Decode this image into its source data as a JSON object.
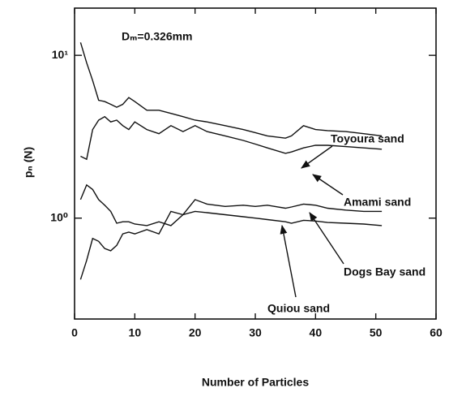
{
  "chart_data": {
    "type": "line",
    "x_label": "Number of Particles",
    "y_label": "pₙ (N)",
    "annotation": "Dₘ=0.326mm",
    "x": [
      1,
      2,
      3,
      4,
      5,
      6,
      7,
      8,
      9,
      10,
      12,
      14,
      16,
      18,
      20,
      22,
      25,
      28,
      30,
      32,
      35,
      36,
      38,
      40,
      42,
      45,
      48,
      51
    ],
    "series": [
      {
        "name": "Toyoura sand",
        "color": "#111111",
        "values": [
          12,
          9,
          7,
          5.3,
          5.2,
          5.0,
          4.8,
          5.0,
          5.5,
          5.2,
          4.6,
          4.6,
          4.4,
          4.2,
          4.0,
          3.9,
          3.7,
          3.5,
          3.35,
          3.2,
          3.1,
          3.2,
          3.7,
          3.5,
          3.45,
          3.4,
          3.3,
          3.2
        ]
      },
      {
        "name": "Amami sand",
        "color": "#111111",
        "values": [
          2.4,
          2.3,
          3.5,
          4.0,
          4.2,
          3.9,
          4.0,
          3.7,
          3.5,
          3.9,
          3.5,
          3.3,
          3.7,
          3.4,
          3.7,
          3.4,
          3.2,
          3.0,
          2.85,
          2.7,
          2.5,
          2.55,
          2.7,
          2.8,
          2.8,
          2.75,
          2.7,
          2.65
        ]
      },
      {
        "name": "Dogs Bay sand",
        "color": "#111111",
        "values": [
          1.3,
          1.6,
          1.5,
          1.3,
          1.2,
          1.1,
          0.93,
          0.95,
          0.95,
          0.92,
          0.9,
          0.95,
          0.9,
          1.05,
          1.1,
          1.08,
          1.05,
          1.02,
          1.0,
          0.98,
          0.95,
          0.93,
          0.97,
          0.96,
          0.94,
          0.93,
          0.92,
          0.9
        ]
      },
      {
        "name": "Quiou sand",
        "color": "#111111",
        "values": [
          0.42,
          0.55,
          0.75,
          0.72,
          0.65,
          0.63,
          0.68,
          0.8,
          0.82,
          0.8,
          0.85,
          0.8,
          1.1,
          1.05,
          1.3,
          1.22,
          1.18,
          1.2,
          1.18,
          1.2,
          1.15,
          1.17,
          1.22,
          1.2,
          1.15,
          1.12,
          1.1,
          1.1
        ]
      }
    ],
    "xlim": [
      0,
      60
    ],
    "xticks": [
      0,
      10,
      20,
      30,
      40,
      50,
      60
    ],
    "ylim": [
      0.24,
      19.5
    ],
    "yticks": [
      {
        "value": 1,
        "label": "10⁰"
      },
      {
        "value": 10,
        "label": "10¹"
      }
    ],
    "log_y": true,
    "grid": false
  }
}
